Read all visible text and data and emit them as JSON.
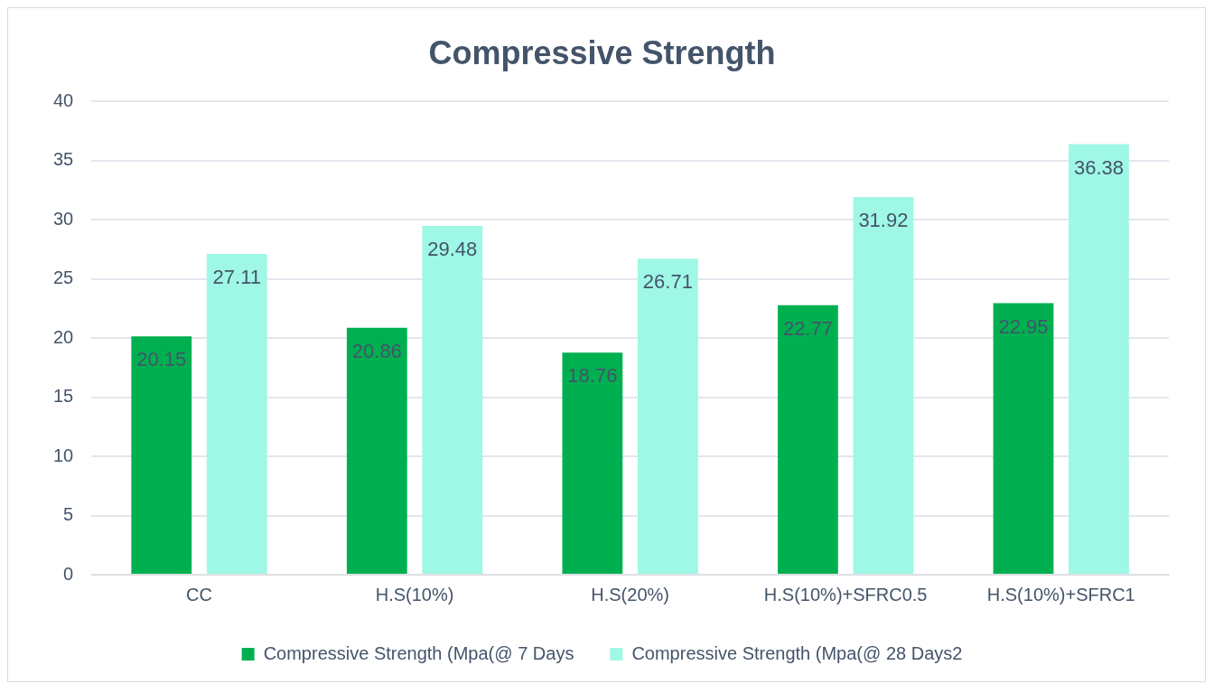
{
  "chart_data": {
    "type": "bar",
    "title": "Compressive Strength",
    "categories": [
      "CC",
      "H.S(10%)",
      "H.S(20%)",
      "H.S(10%)+SFRC0.5",
      "H.S(10%)+SFRC1"
    ],
    "series": [
      {
        "name": "Compressive Strength (Mpa(@ 7 Days",
        "color": "#00b050",
        "values": [
          20.15,
          20.86,
          18.76,
          22.77,
          22.95
        ]
      },
      {
        "name": "Compressive Strength (Mpa(@ 28 Days2",
        "color": "#9ff7e5",
        "values": [
          27.11,
          29.48,
          26.71,
          31.92,
          36.38
        ]
      }
    ],
    "ylim": [
      0,
      40
    ],
    "yticks": [
      0,
      5,
      10,
      15,
      20,
      25,
      30,
      35,
      40
    ],
    "grid": "y",
    "legend": "bottom",
    "data_labels": true
  }
}
